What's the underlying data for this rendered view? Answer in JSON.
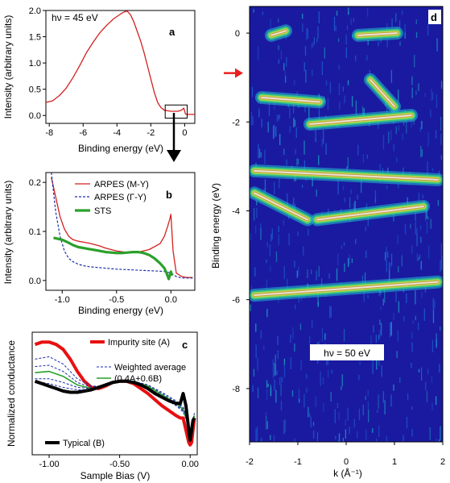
{
  "chart_data": [
    {
      "id": "a",
      "type": "line",
      "panel_letter": "a",
      "annotation": "hν = 45 eV",
      "xlabel": "Binding energy (eV)",
      "ylabel": "Intensity (arbitrary units)",
      "xlim": [
        -8.2,
        0.6
      ],
      "ylim": [
        -0.15,
        2.0
      ],
      "xticks": [
        "-8",
        "-6",
        "-4",
        "-2",
        "0"
      ],
      "yticks": [
        "0.0",
        "0.5",
        "1.0",
        "1.5",
        "2.0"
      ],
      "series": [
        {
          "color": "#d42020",
          "x": [
            -8.2,
            -7.8,
            -7.4,
            -7.0,
            -6.6,
            -6.2,
            -5.8,
            -5.4,
            -5.0,
            -4.6,
            -4.2,
            -3.8,
            -3.6,
            -3.4,
            -3.2,
            -3.0,
            -2.8,
            -2.6,
            -2.4,
            -2.2,
            -2.0,
            -1.8,
            -1.6,
            -1.4,
            -1.2,
            -1.0,
            -0.8,
            -0.6,
            -0.4,
            -0.2,
            -0.05,
            0.0,
            0.05,
            0.1,
            0.3,
            0.6
          ],
          "y": [
            0.25,
            0.28,
            0.38,
            0.52,
            0.72,
            0.95,
            1.2,
            1.4,
            1.58,
            1.72,
            1.84,
            1.93,
            1.97,
            1.99,
            1.92,
            1.78,
            1.6,
            1.42,
            1.2,
            0.95,
            0.7,
            0.45,
            0.25,
            0.15,
            0.1,
            0.09,
            0.08,
            0.08,
            0.08,
            0.1,
            0.14,
            0.08,
            0.03,
            0.02,
            0.02,
            0.02
          ]
        }
      ],
      "inset_box": {
        "x": [
          -1.15,
          0.15
        ],
        "y": [
          -0.05,
          0.2
        ]
      }
    },
    {
      "id": "b",
      "type": "line",
      "panel_letter": "b",
      "xlabel": "Binding energy (eV)",
      "ylabel": "Intensity (arbitrary units)",
      "xlim": [
        -1.15,
        0.22
      ],
      "ylim": [
        -0.02,
        0.22
      ],
      "xticks": [
        "-1.0",
        "-0.5",
        "0.0"
      ],
      "yticks": [
        "0.0",
        "0.1",
        "0.2"
      ],
      "legend": [
        "ARPES (M-Y)",
        "ARPES (Γ-Y)",
        "STS"
      ],
      "series": [
        {
          "name": "ARPES (M-Y)",
          "color": "#d42020",
          "dash": "none",
          "width": 1.3,
          "x": [
            -1.1,
            -1.06,
            -1.02,
            -0.98,
            -0.94,
            -0.9,
            -0.85,
            -0.8,
            -0.75,
            -0.7,
            -0.65,
            -0.6,
            -0.5,
            -0.4,
            -0.3,
            -0.2,
            -0.1,
            -0.06,
            -0.03,
            -0.01,
            0.0,
            0.02,
            0.05,
            0.1,
            0.15,
            0.2
          ],
          "y": [
            0.21,
            0.17,
            0.13,
            0.105,
            0.09,
            0.083,
            0.08,
            0.078,
            0.076,
            0.073,
            0.07,
            0.066,
            0.06,
            0.057,
            0.058,
            0.063,
            0.075,
            0.09,
            0.11,
            0.125,
            0.135,
            0.06,
            0.015,
            0.008,
            0.006,
            0.006
          ]
        },
        {
          "name": "ARPES (Γ-Y)",
          "color": "#1a2ea8",
          "dash": "3,2",
          "width": 1.2,
          "x": [
            -1.1,
            -1.06,
            -1.02,
            -0.98,
            -0.94,
            -0.9,
            -0.85,
            -0.8,
            -0.75,
            -0.7,
            -0.65,
            -0.6,
            -0.5,
            -0.4,
            -0.3,
            -0.2,
            -0.1,
            -0.05,
            0.0,
            0.05,
            0.1,
            0.2
          ],
          "y": [
            0.22,
            0.14,
            0.09,
            0.06,
            0.045,
            0.038,
            0.033,
            0.03,
            0.028,
            0.027,
            0.026,
            0.025,
            0.023,
            0.022,
            0.021,
            0.02,
            0.019,
            0.018,
            0.015,
            0.008,
            0.005,
            0.005
          ]
        },
        {
          "name": "STS",
          "color": "#2aa02a",
          "dash": "none",
          "width": 3.2,
          "x": [
            -1.08,
            -1.0,
            -0.95,
            -0.9,
            -0.85,
            -0.8,
            -0.75,
            -0.7,
            -0.65,
            -0.6,
            -0.55,
            -0.5,
            -0.45,
            -0.4,
            -0.35,
            -0.3,
            -0.25,
            -0.2,
            -0.15,
            -0.1,
            -0.06,
            -0.04,
            -0.02,
            0.0,
            0.01
          ],
          "y": [
            0.087,
            0.083,
            0.078,
            0.072,
            0.068,
            0.066,
            0.064,
            0.062,
            0.06,
            0.058,
            0.057,
            0.056,
            0.056,
            0.057,
            0.058,
            0.058,
            0.056,
            0.052,
            0.045,
            0.035,
            0.025,
            0.015,
            0.003,
            0.018,
            0.01
          ]
        }
      ]
    },
    {
      "id": "c",
      "type": "line",
      "panel_letter": "c",
      "xlabel": "Sample Bias (V)",
      "ylabel": "Normalized conductance",
      "xlim": [
        -1.12,
        0.05
      ],
      "ylim": [
        0.0,
        1.0
      ],
      "xticks": [
        "-1.00",
        "-0.50",
        "0.00"
      ],
      "legend": [
        "Impurity site (A)",
        "Weighted average",
        "(0.4A+0.6B)",
        "Typical (B)"
      ],
      "series": [
        {
          "name": "Impurity site (A)",
          "color": "#e81010",
          "dash": "none",
          "width": 4,
          "x": [
            -1.1,
            -1.05,
            -1.0,
            -0.95,
            -0.9,
            -0.85,
            -0.8,
            -0.75,
            -0.7,
            -0.65,
            -0.6,
            -0.55,
            -0.5,
            -0.45,
            -0.4,
            -0.35,
            -0.3,
            -0.25,
            -0.2,
            -0.15,
            -0.1,
            -0.07,
            -0.05,
            -0.03,
            -0.01,
            0.0,
            0.01,
            0.02,
            0.03
          ],
          "y": [
            0.9,
            0.92,
            0.92,
            0.9,
            0.86,
            0.78,
            0.68,
            0.6,
            0.55,
            0.54,
            0.56,
            0.59,
            0.6,
            0.6,
            0.58,
            0.54,
            0.5,
            0.45,
            0.4,
            0.36,
            0.32,
            0.3,
            0.3,
            0.2,
            0.1,
            0.08,
            0.1,
            0.2,
            0.3
          ]
        },
        {
          "color": "#1a2ea8",
          "dash": "3,2",
          "width": 1,
          "x": [
            -1.1,
            -1.0,
            -0.9,
            -0.8,
            -0.7,
            -0.6,
            -0.5,
            -0.4,
            -0.3,
            -0.2,
            -0.1,
            -0.05,
            0.0,
            0.03
          ],
          "y": [
            0.78,
            0.8,
            0.74,
            0.62,
            0.56,
            0.56,
            0.6,
            0.6,
            0.55,
            0.47,
            0.4,
            0.35,
            0.2,
            0.3
          ]
        },
        {
          "color": "#1a2ea8",
          "dash": "3,2",
          "width": 1,
          "x": [
            -1.1,
            -1.0,
            -0.9,
            -0.8,
            -0.7,
            -0.6,
            -0.5,
            -0.4,
            -0.3,
            -0.2,
            -0.1,
            -0.05,
            0.0,
            0.03
          ],
          "y": [
            0.72,
            0.73,
            0.68,
            0.59,
            0.55,
            0.56,
            0.6,
            0.6,
            0.56,
            0.48,
            0.41,
            0.36,
            0.2,
            0.3
          ]
        },
        {
          "name": "Weighted average",
          "color": "#2aa02a",
          "dash": "none",
          "width": 1.6,
          "x": [
            -1.1,
            -1.0,
            -0.9,
            -0.8,
            -0.7,
            -0.6,
            -0.5,
            -0.4,
            -0.3,
            -0.2,
            -0.1,
            -0.05,
            0.0,
            0.03
          ],
          "y": [
            0.67,
            0.68,
            0.64,
            0.57,
            0.54,
            0.56,
            0.6,
            0.6,
            0.56,
            0.49,
            0.42,
            0.37,
            0.2,
            0.32
          ]
        },
        {
          "color": "#1a2ea8",
          "dash": "3,2",
          "width": 1,
          "x": [
            -1.1,
            -1.0,
            -0.9,
            -0.8,
            -0.7,
            -0.6,
            -0.5,
            -0.4,
            -0.3,
            -0.2,
            -0.1,
            -0.05,
            0.0,
            0.03
          ],
          "y": [
            0.62,
            0.62,
            0.59,
            0.55,
            0.54,
            0.56,
            0.6,
            0.6,
            0.57,
            0.5,
            0.43,
            0.38,
            0.2,
            0.33
          ]
        },
        {
          "color": "#1a2ea8",
          "dash": "3,2",
          "width": 1,
          "x": [
            -1.1,
            -1.0,
            -0.9,
            -0.8,
            -0.7,
            -0.6,
            -0.5,
            -0.4,
            -0.3,
            -0.2,
            -0.1,
            -0.05,
            0.0,
            0.03
          ],
          "y": [
            0.6,
            0.58,
            0.55,
            0.53,
            0.53,
            0.56,
            0.6,
            0.6,
            0.57,
            0.51,
            0.44,
            0.39,
            0.2,
            0.34
          ]
        },
        {
          "name": "Typical (B)",
          "color": "#000000",
          "dash": "none",
          "width": 4,
          "x": [
            -1.1,
            -1.05,
            -1.0,
            -0.95,
            -0.9,
            -0.85,
            -0.8,
            -0.75,
            -0.7,
            -0.65,
            -0.6,
            -0.55,
            -0.5,
            -0.45,
            -0.4,
            -0.35,
            -0.3,
            -0.25,
            -0.2,
            -0.15,
            -0.1,
            -0.07,
            -0.05,
            -0.03,
            -0.01,
            0.0,
            0.01,
            0.02,
            0.03
          ],
          "y": [
            0.6,
            0.58,
            0.56,
            0.54,
            0.52,
            0.51,
            0.51,
            0.52,
            0.53,
            0.55,
            0.57,
            0.59,
            0.6,
            0.6,
            0.59,
            0.57,
            0.54,
            0.5,
            0.47,
            0.44,
            0.42,
            0.42,
            0.5,
            0.4,
            0.2,
            0.12,
            0.2,
            0.28,
            0.3
          ]
        }
      ]
    },
    {
      "id": "d",
      "type": "heatmap",
      "panel_letter": "d",
      "annotation": "hν = 50 eV",
      "xlabel": "k (Å⁻¹)",
      "ylabel": "Binding energy (eV)",
      "xlim": [
        -2,
        2
      ],
      "ylim": [
        -9.2,
        0.6
      ],
      "xticks": [
        "-2",
        "-1",
        "0",
        "1",
        "2"
      ],
      "yticks": [
        "0",
        "-2",
        "-4",
        "-6",
        "-8"
      ],
      "colormap": [
        "#1a1aa0",
        "#1e6ee0",
        "#20c0d0",
        "#40e070",
        "#c8e040",
        "#c89a50",
        "#f0e8e0"
      ],
      "marker_energy": -0.9,
      "marker_color": "#e82020",
      "bands": [
        {
          "k": [
            -1.55,
            -1.25
          ],
          "E": [
            -0.05,
            0.05
          ]
        },
        {
          "k": [
            0.25,
            1.05
          ],
          "E": [
            -0.05,
            0.0
          ]
        },
        {
          "k": [
            -1.75,
            -0.55
          ],
          "E": [
            -1.45,
            -1.55
          ]
        },
        {
          "k": [
            -0.75,
            1.35
          ],
          "E": [
            -2.05,
            -1.85
          ]
        },
        {
          "k": [
            0.5,
            1.0
          ],
          "E": [
            -1.05,
            -1.65
          ]
        },
        {
          "k": [
            -1.9,
            1.9
          ],
          "E": [
            -3.1,
            -3.3
          ]
        },
        {
          "k": [
            -1.9,
            -0.8
          ],
          "E": [
            -3.6,
            -4.2
          ]
        },
        {
          "k": [
            -0.6,
            1.6
          ],
          "E": [
            -4.2,
            -3.9
          ]
        },
        {
          "k": [
            -1.9,
            1.9
          ],
          "E": [
            -5.9,
            -5.6
          ]
        }
      ]
    }
  ]
}
